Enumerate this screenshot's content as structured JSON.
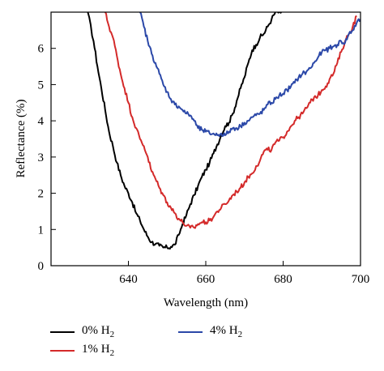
{
  "chart_data": {
    "type": "line",
    "xlabel": "Wavelength (nm)",
    "ylabel": "Reflectance (%)",
    "xlim": [
      620,
      700
    ],
    "ylim": [
      0,
      7
    ],
    "xticks": [
      640,
      660,
      680,
      700
    ],
    "yticks": [
      0,
      1,
      2,
      3,
      4,
      5,
      6
    ],
    "grid": false,
    "legend_position": "bottom",
    "series": [
      {
        "name": "0% H2",
        "name_base": "0% H",
        "name_sub": "2",
        "color": "#000000",
        "x": [
          629.5,
          631,
          632,
          633,
          634,
          635,
          636,
          637,
          638,
          639,
          640,
          641,
          642,
          643,
          644,
          645,
          646,
          647,
          648,
          649,
          650,
          651,
          652,
          653,
          654,
          655,
          656,
          657,
          658,
          659,
          660,
          661,
          662,
          663,
          664,
          665,
          666,
          667,
          668,
          669,
          670,
          671,
          672,
          673,
          674,
          675,
          676,
          677,
          678,
          679,
          679.5
        ],
        "y": [
          7.0,
          6.2,
          5.5,
          4.9,
          4.3,
          3.7,
          3.3,
          2.85,
          2.5,
          2.2,
          2.0,
          1.75,
          1.45,
          1.25,
          1.0,
          0.8,
          0.65,
          0.6,
          0.55,
          0.5,
          0.5,
          0.52,
          0.58,
          0.85,
          1.15,
          1.4,
          1.7,
          1.95,
          2.2,
          2.45,
          2.65,
          2.85,
          3.1,
          3.35,
          3.6,
          3.85,
          3.95,
          4.2,
          4.55,
          4.9,
          5.2,
          5.6,
          5.95,
          6.1,
          6.3,
          6.4,
          6.6,
          6.8,
          7.0,
          7.0,
          7.0
        ]
      },
      {
        "name": "1% H2",
        "name_base": "1% H",
        "name_sub": "2",
        "color": "#d42a2a",
        "x": [
          634,
          635,
          636,
          637,
          638,
          639,
          640,
          641,
          642,
          643,
          644,
          645,
          646,
          647,
          648,
          649,
          650,
          651,
          652,
          653,
          654,
          655,
          656,
          657,
          658,
          659,
          660,
          661,
          662,
          663,
          664,
          665,
          666,
          667,
          668,
          669,
          670,
          671,
          672,
          673,
          674,
          675,
          676,
          677,
          678,
          679,
          680,
          681,
          682,
          683,
          684,
          685,
          686,
          687,
          688,
          689,
          690,
          691,
          692,
          693,
          694,
          695,
          696,
          697,
          698,
          699
        ],
        "y": [
          7.0,
          6.6,
          6.3,
          5.8,
          5.3,
          4.9,
          4.5,
          4.1,
          3.8,
          3.5,
          3.3,
          3.0,
          2.6,
          2.4,
          2.15,
          1.95,
          1.75,
          1.6,
          1.45,
          1.3,
          1.2,
          1.1,
          1.05,
          1.05,
          1.15,
          1.2,
          1.2,
          1.25,
          1.35,
          1.5,
          1.6,
          1.7,
          1.8,
          1.95,
          2.05,
          2.15,
          2.3,
          2.45,
          2.55,
          2.75,
          2.9,
          3.15,
          3.2,
          3.2,
          3.4,
          3.45,
          3.55,
          3.7,
          3.85,
          4.0,
          4.1,
          4.2,
          4.35,
          4.5,
          4.65,
          4.7,
          4.85,
          4.95,
          5.15,
          5.3,
          5.6,
          5.9,
          6.2,
          6.4,
          6.6,
          6.9
        ]
      },
      {
        "name": "4% H2",
        "name_base": "4% H",
        "name_sub": "2",
        "color": "#2b48a8",
        "x": [
          643,
          644,
          645,
          646,
          647,
          648,
          649,
          650,
          651,
          652,
          653,
          654,
          655,
          656,
          657,
          658,
          659,
          660,
          661,
          662,
          663,
          664,
          665,
          666,
          667,
          668,
          669,
          670,
          671,
          672,
          673,
          674,
          675,
          676,
          677,
          678,
          679,
          680,
          681,
          682,
          683,
          684,
          685,
          686,
          687,
          688,
          689,
          690,
          691,
          692,
          693,
          694,
          695,
          696,
          697,
          698,
          699,
          700
        ],
        "y": [
          7.0,
          6.6,
          6.2,
          5.85,
          5.6,
          5.3,
          5.0,
          4.8,
          4.6,
          4.45,
          4.4,
          4.3,
          4.2,
          4.15,
          4.0,
          3.8,
          3.75,
          3.7,
          3.65,
          3.65,
          3.6,
          3.65,
          3.6,
          3.7,
          3.8,
          3.8,
          3.85,
          3.95,
          4.0,
          4.1,
          4.15,
          4.2,
          4.3,
          4.45,
          4.5,
          4.6,
          4.7,
          4.75,
          4.85,
          4.95,
          5.05,
          5.2,
          5.3,
          5.35,
          5.45,
          5.6,
          5.75,
          5.9,
          5.95,
          6.0,
          6.05,
          6.1,
          6.2,
          6.15,
          6.4,
          6.5,
          6.7,
          6.8
        ]
      }
    ]
  }
}
